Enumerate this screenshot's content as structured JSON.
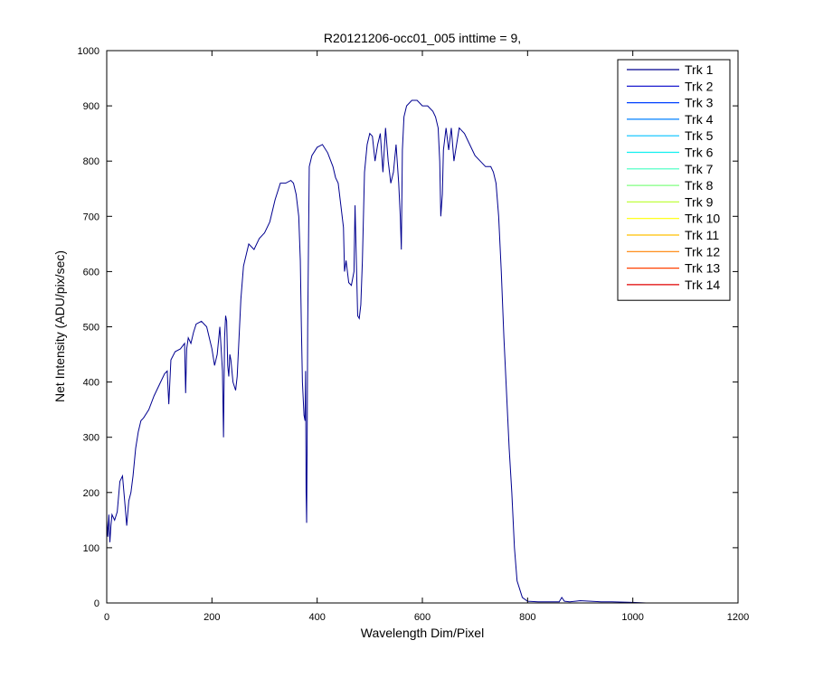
{
  "chart_data": {
    "type": "line",
    "title": "R20121206-occ01_005 inttime = 9,",
    "xlabel": "Wavelength Dim/Pixel",
    "ylabel": "Net Intensity (ADU/pix/sec)",
    "xlim": [
      0,
      1200
    ],
    "ylim": [
      0,
      1000
    ],
    "xticks": [
      "0",
      "200",
      "400",
      "600",
      "800",
      "1000",
      "1200"
    ],
    "yticks": [
      "0",
      "100",
      "200",
      "300",
      "400",
      "500",
      "600",
      "700",
      "800",
      "900",
      "1000"
    ],
    "grid": false,
    "legend_position": "top-right",
    "series": [
      {
        "name": "Trk 1",
        "color": "#00008F",
        "x": [
          0,
          2,
          4,
          6,
          8,
          10,
          15,
          20,
          25,
          30,
          35,
          38,
          42,
          46,
          50,
          55,
          60,
          65,
          70,
          80,
          90,
          100,
          110,
          115,
          118,
          122,
          130,
          140,
          148,
          150,
          152,
          155,
          160,
          165,
          170,
          180,
          190,
          200,
          205,
          210,
          215,
          220,
          222,
          224,
          226,
          228,
          230,
          232,
          234,
          236,
          240,
          245,
          248,
          252,
          255,
          260,
          270,
          280,
          290,
          300,
          310,
          320,
          330,
          340,
          350,
          355,
          360,
          365,
          368,
          370,
          372,
          375,
          377,
          378,
          379,
          380,
          381,
          382,
          385,
          390,
          400,
          410,
          420,
          430,
          435,
          440,
          445,
          450,
          452,
          455,
          460,
          465,
          470,
          472,
          475,
          477,
          480,
          483,
          486,
          490,
          495,
          500,
          505,
          510,
          515,
          520,
          525,
          530,
          535,
          540,
          545,
          550,
          555,
          558,
          560,
          562,
          565,
          570,
          580,
          590,
          600,
          610,
          620,
          625,
          630,
          633,
          635,
          638,
          640,
          645,
          650,
          655,
          660,
          665,
          670,
          680,
          690,
          700,
          710,
          720,
          730,
          735,
          740,
          745,
          750,
          755,
          760,
          765,
          770,
          775,
          780,
          790,
          800,
          820,
          850,
          860,
          865,
          870,
          880,
          900,
          920,
          940,
          960,
          1000,
          1025
        ],
        "y": [
          150,
          120,
          160,
          110,
          140,
          160,
          150,
          165,
          220,
          230,
          175,
          140,
          185,
          200,
          230,
          280,
          310,
          330,
          335,
          350,
          375,
          395,
          415,
          420,
          360,
          440,
          455,
          460,
          470,
          380,
          460,
          480,
          470,
          490,
          505,
          510,
          500,
          460,
          430,
          450,
          500,
          420,
          300,
          480,
          520,
          510,
          430,
          410,
          450,
          440,
          400,
          385,
          410,
          490,
          550,
          610,
          650,
          640,
          660,
          670,
          690,
          730,
          760,
          760,
          765,
          760,
          740,
          700,
          620,
          500,
          400,
          340,
          330,
          420,
          200,
          145,
          300,
          500,
          790,
          810,
          825,
          830,
          815,
          790,
          770,
          760,
          720,
          680,
          600,
          620,
          580,
          575,
          600,
          720,
          600,
          520,
          515,
          540,
          620,
          780,
          830,
          850,
          845,
          800,
          830,
          850,
          780,
          860,
          800,
          760,
          780,
          830,
          760,
          700,
          640,
          820,
          880,
          900,
          910,
          910,
          900,
          900,
          890,
          880,
          860,
          800,
          700,
          740,
          820,
          860,
          820,
          860,
          800,
          830,
          860,
          850,
          830,
          810,
          800,
          790,
          790,
          780,
          760,
          700,
          600,
          480,
          380,
          280,
          200,
          100,
          40,
          10,
          3,
          2,
          2,
          2,
          10,
          3,
          2,
          4,
          3,
          2,
          2,
          1,
          0
        ]
      },
      {
        "name": "Trk 2",
        "color": "#0000C8",
        "x": [
          0,
          1025
        ],
        "y": [
          0,
          0
        ]
      },
      {
        "name": "Trk 3",
        "color": "#0040FF",
        "x": [
          0,
          1025
        ],
        "y": [
          0,
          0
        ]
      },
      {
        "name": "Trk 4",
        "color": "#0080FF",
        "x": [
          0,
          1025
        ],
        "y": [
          0,
          0
        ]
      },
      {
        "name": "Trk 5",
        "color": "#00C0FF",
        "x": [
          0,
          1025
        ],
        "y": [
          0,
          0
        ]
      },
      {
        "name": "Trk 6",
        "color": "#10F0F0",
        "x": [
          0,
          1025
        ],
        "y": [
          0,
          0
        ]
      },
      {
        "name": "Trk 7",
        "color": "#40FFC0",
        "x": [
          0,
          1025
        ],
        "y": [
          0,
          0
        ]
      },
      {
        "name": "Trk 8",
        "color": "#80FF80",
        "x": [
          0,
          1025
        ],
        "y": [
          0,
          0
        ]
      },
      {
        "name": "Trk 9",
        "color": "#C0FF40",
        "x": [
          0,
          1025
        ],
        "y": [
          0,
          0
        ]
      },
      {
        "name": "Trk 10",
        "color": "#FFFF00",
        "x": [
          0,
          1025
        ],
        "y": [
          0,
          0
        ]
      },
      {
        "name": "Trk 11",
        "color": "#FFC000",
        "x": [
          0,
          1025
        ],
        "y": [
          0,
          0
        ]
      },
      {
        "name": "Trk 12",
        "color": "#FF8000",
        "x": [
          0,
          1025
        ],
        "y": [
          0,
          0
        ]
      },
      {
        "name": "Trk 13",
        "color": "#FF4000",
        "x": [
          0,
          1025
        ],
        "y": [
          0,
          0
        ]
      },
      {
        "name": "Trk 14",
        "color": "#E00000",
        "x": [
          0,
          1025
        ],
        "y": [
          0,
          0
        ]
      }
    ]
  }
}
